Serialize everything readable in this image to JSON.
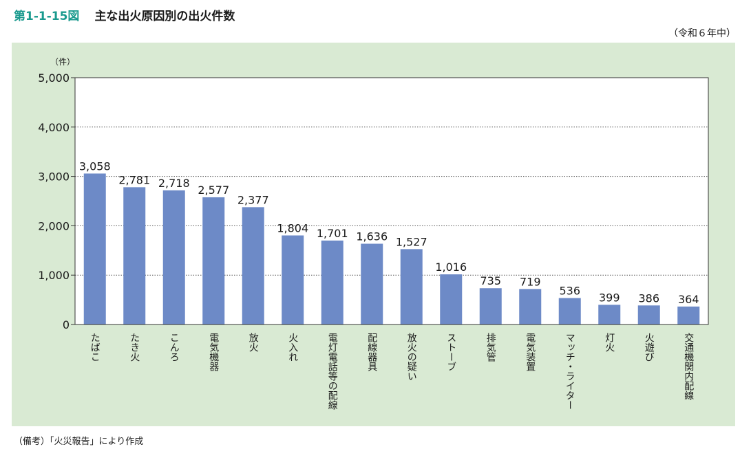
{
  "figure": {
    "number": "第1-1-15図",
    "title": "主な出火原因別の出火件数",
    "period": "（令和６年中）",
    "source": "（備考）「火災報告」により作成"
  },
  "colors": {
    "bar": "#6d8ac7",
    "panel": "#d9ead3",
    "accent": "#1a9a8e"
  },
  "chart_data": {
    "type": "bar",
    "ylabel": "（件）",
    "ylim": [
      0,
      5000
    ],
    "yticks": [
      0,
      1000,
      2000,
      3000,
      4000,
      5000
    ],
    "ytick_labels": [
      "0",
      "1,000",
      "2,000",
      "3,000",
      "4,000",
      "5,000"
    ],
    "grid": true,
    "categories": [
      "たばこ",
      "たき火",
      "こんろ",
      "電気機器",
      "放火",
      "火入れ",
      "電灯電話等の配線",
      "配線器具",
      "放火の疑い",
      "ストーブ",
      "排気管",
      "電気装置",
      "マッチ・ライター",
      "灯火",
      "火遊び",
      "交通機関内配線"
    ],
    "values": [
      3058,
      2781,
      2718,
      2577,
      2377,
      1804,
      1701,
      1636,
      1527,
      1016,
      735,
      719,
      536,
      399,
      386,
      364
    ],
    "value_labels": [
      "3,058",
      "2,781",
      "2,718",
      "2,577",
      "2,377",
      "1,804",
      "1,701",
      "1,636",
      "1,527",
      "1,016",
      "735",
      "719",
      "536",
      "399",
      "386",
      "364"
    ]
  }
}
